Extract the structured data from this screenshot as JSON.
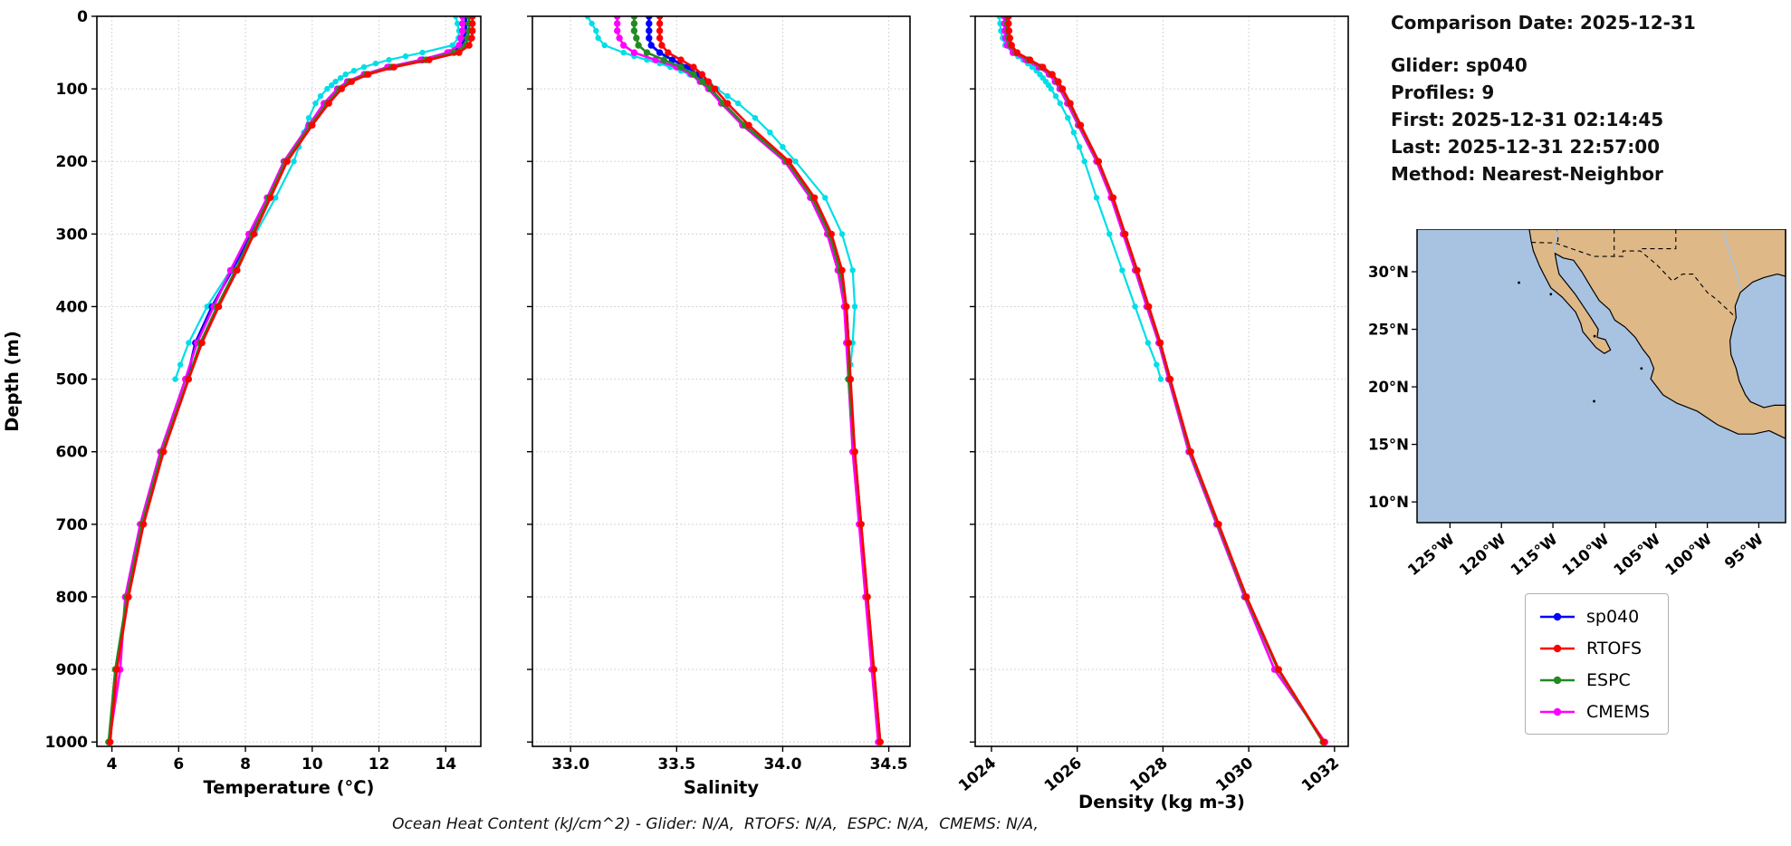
{
  "info": {
    "comparison_date": "Comparison Date: 2025-12-31",
    "glider": "Glider: sp040",
    "profiles": "Profiles: 9",
    "first": "First: 2025-12-31 02:14:45",
    "last": "Last: 2025-12-31 22:57:00",
    "method": "Method: Nearest-Neighbor"
  },
  "caption": "Ocean Heat Content (kJ/cm^2) - Glider: N/A,  RTOFS: N/A,  ESPC: N/A,  CMEMS: N/A,",
  "legend": {
    "entries": [
      {
        "label": "sp040",
        "color": "#0000ff"
      },
      {
        "label": "RTOFS",
        "color": "#ff0000"
      },
      {
        "label": "ESPC",
        "color": "#228b22"
      },
      {
        "label": "CMEMS",
        "color": "#ff00ff"
      }
    ]
  },
  "map": {
    "lat_tick_labels": [
      "30°N",
      "25°N",
      "20°N",
      "15°N",
      "10°N"
    ],
    "lat_tick_values": [
      30,
      25,
      20,
      15,
      10
    ],
    "lon_tick_labels": [
      "125°W",
      "120°W",
      "115°W",
      "110°W",
      "105°W",
      "100°W",
      "95°W"
    ],
    "lon_tick_values": [
      -125,
      -120,
      -115,
      -110,
      -105,
      -100,
      -95
    ],
    "land_color": "#deb887",
    "ocean_color": "#a8c3e2",
    "extent": {
      "lon_min": -128.2,
      "lon_max": -92.4,
      "lat_min": 8.2,
      "lat_max": 33.7
    }
  },
  "chart_data": [
    {
      "type": "line",
      "name": "temperature-profile",
      "xlabel": "Temperature (°C)",
      "ylabel": "Depth (m)",
      "xlim": [
        3.55,
        15.05
      ],
      "xticks": [
        4,
        6,
        8,
        10,
        12,
        14
      ],
      "xtick_labels": [
        "4",
        "6",
        "8",
        "10",
        "12",
        "14"
      ],
      "ylim": [
        0,
        1006
      ],
      "yticks": [
        0,
        100,
        200,
        300,
        400,
        500,
        600,
        700,
        800,
        900,
        1000
      ],
      "ytick_labels": [
        "0",
        "100",
        "200",
        "300",
        "400",
        "500",
        "600",
        "700",
        "800",
        "900",
        "1000"
      ],
      "grid": true,
      "series": [
        {
          "name": "glider-raw",
          "label": "sp040 raw",
          "color": "#00dee8",
          "depth": [
            0,
            10,
            20,
            30,
            40,
            50,
            55,
            60,
            65,
            70,
            75,
            80,
            85,
            90,
            95,
            100,
            110,
            120,
            140,
            160,
            180,
            200,
            250,
            300,
            350,
            400,
            450,
            480,
            500
          ],
          "values": [
            14.3,
            14.35,
            14.4,
            14.38,
            14.2,
            13.3,
            12.8,
            12.3,
            11.9,
            11.55,
            11.25,
            11.0,
            10.85,
            10.7,
            10.58,
            10.45,
            10.25,
            10.1,
            9.9,
            9.75,
            9.6,
            9.45,
            8.9,
            8.3,
            7.55,
            6.85,
            6.3,
            6.05,
            5.9
          ]
        },
        {
          "name": "sp040",
          "label": "sp040",
          "color": "#0000ff",
          "depth": [
            0,
            10,
            20,
            30,
            40,
            50,
            60,
            70,
            80,
            90,
            100,
            120,
            150,
            200,
            250,
            300,
            350,
            400,
            450,
            500
          ],
          "values": [
            14.6,
            14.6,
            14.6,
            14.55,
            14.5,
            14.1,
            13.3,
            12.3,
            11.6,
            11.1,
            10.8,
            10.4,
            9.9,
            9.2,
            8.7,
            8.15,
            7.6,
            7.0,
            6.5,
            6.25
          ]
        },
        {
          "name": "CMEMS",
          "label": "CMEMS",
          "color": "#ff00ff",
          "depth": [
            0,
            10,
            20,
            30,
            40,
            50,
            60,
            70,
            80,
            90,
            100,
            120,
            150,
            200,
            250,
            300,
            350,
            400,
            450,
            500,
            600,
            700,
            800,
            900,
            1000
          ],
          "values": [
            14.5,
            14.5,
            14.5,
            14.45,
            14.4,
            14.05,
            13.25,
            12.25,
            11.55,
            11.05,
            10.75,
            10.35,
            9.9,
            9.15,
            8.65,
            8.1,
            7.55,
            7.05,
            6.55,
            6.2,
            5.45,
            4.85,
            4.4,
            4.25,
            3.92
          ]
        },
        {
          "name": "ESPC",
          "label": "ESPC",
          "color": "#228b22",
          "depth": [
            0,
            10,
            20,
            30,
            40,
            50,
            60,
            70,
            80,
            90,
            100,
            120,
            150,
            200,
            250,
            300,
            350,
            400,
            450,
            500,
            600,
            700,
            800,
            900,
            1000
          ],
          "values": [
            14.7,
            14.7,
            14.7,
            14.65,
            14.6,
            14.25,
            13.4,
            12.38,
            11.62,
            11.12,
            10.82,
            10.45,
            9.95,
            9.2,
            8.7,
            8.2,
            7.7,
            7.15,
            6.65,
            6.28,
            5.5,
            4.9,
            4.45,
            4.1,
            3.9
          ]
        },
        {
          "name": "RTOFS",
          "label": "RTOFS",
          "color": "#ff0000",
          "depth": [
            0,
            10,
            20,
            30,
            40,
            50,
            60,
            70,
            80,
            90,
            100,
            120,
            150,
            200,
            250,
            300,
            350,
            400,
            450,
            500,
            600,
            700,
            800,
            900,
            1000
          ],
          "values": [
            14.8,
            14.8,
            14.8,
            14.78,
            14.7,
            14.4,
            13.5,
            12.45,
            11.68,
            11.18,
            10.88,
            10.5,
            10.0,
            9.25,
            8.75,
            8.25,
            7.75,
            7.2,
            6.7,
            6.3,
            5.55,
            4.95,
            4.5,
            4.15,
            3.95
          ]
        }
      ]
    },
    {
      "type": "line",
      "name": "salinity-profile",
      "xlabel": "Salinity",
      "ylabel": "Depth (m)",
      "xlim": [
        32.82,
        34.6
      ],
      "xticks": [
        33.0,
        33.5,
        34.0,
        34.5
      ],
      "xtick_labels": [
        "33.0",
        "33.5",
        "34.0",
        "34.5"
      ],
      "ylim": [
        0,
        1006
      ],
      "yticks": [
        0,
        100,
        200,
        300,
        400,
        500,
        600,
        700,
        800,
        900,
        1000
      ],
      "ytick_labels": [
        "0",
        "100",
        "200",
        "300",
        "400",
        "500",
        "600",
        "700",
        "800",
        "900",
        "1000"
      ],
      "grid": true,
      "series": [
        {
          "name": "glider-raw",
          "label": "sp040 raw",
          "color": "#00dee8",
          "depth": [
            0,
            10,
            20,
            30,
            40,
            50,
            55,
            60,
            65,
            70,
            75,
            80,
            85,
            90,
            95,
            100,
            110,
            120,
            140,
            160,
            180,
            200,
            250,
            300,
            350,
            400,
            450,
            480,
            500
          ],
          "values": [
            33.08,
            33.1,
            33.12,
            33.13,
            33.16,
            33.25,
            33.3,
            33.36,
            33.42,
            33.47,
            33.52,
            33.56,
            33.6,
            33.63,
            33.66,
            33.69,
            33.74,
            33.79,
            33.87,
            33.94,
            34.0,
            34.06,
            34.2,
            34.28,
            34.33,
            34.34,
            34.33,
            34.32,
            34.31
          ]
        },
        {
          "name": "sp040",
          "label": "sp040",
          "color": "#0000ff",
          "depth": [
            0,
            10,
            20,
            30,
            40,
            50,
            60,
            70,
            80,
            90,
            100,
            120,
            150,
            200,
            250,
            300,
            350,
            400,
            450,
            500
          ],
          "values": [
            33.37,
            33.37,
            33.37,
            33.37,
            33.38,
            33.42,
            33.48,
            33.55,
            33.6,
            33.63,
            33.66,
            33.72,
            33.82,
            34.02,
            34.14,
            34.22,
            34.27,
            34.3,
            34.31,
            34.31
          ]
        },
        {
          "name": "CMEMS",
          "label": "CMEMS",
          "color": "#ff00ff",
          "depth": [
            0,
            10,
            20,
            30,
            40,
            50,
            60,
            70,
            80,
            90,
            100,
            120,
            150,
            200,
            250,
            300,
            350,
            400,
            450,
            500,
            600,
            700,
            800,
            900,
            1000
          ],
          "values": [
            33.22,
            33.22,
            33.22,
            33.23,
            33.25,
            33.3,
            33.4,
            33.5,
            33.57,
            33.61,
            33.65,
            33.71,
            33.81,
            34.01,
            34.13,
            34.21,
            34.26,
            34.29,
            34.3,
            34.31,
            34.33,
            34.36,
            34.39,
            34.42,
            34.45
          ]
        },
        {
          "name": "ESPC",
          "label": "ESPC",
          "color": "#228b22",
          "depth": [
            0,
            10,
            20,
            30,
            40,
            50,
            60,
            70,
            80,
            90,
            100,
            120,
            150,
            200,
            250,
            300,
            350,
            400,
            450,
            500,
            600,
            700,
            800,
            900,
            1000
          ],
          "values": [
            33.3,
            33.3,
            33.3,
            33.31,
            33.32,
            33.36,
            33.44,
            33.52,
            33.58,
            33.62,
            33.66,
            33.72,
            33.82,
            34.02,
            34.14,
            34.22,
            34.27,
            34.3,
            34.31,
            34.31,
            34.34,
            34.37,
            34.4,
            34.43,
            34.46
          ]
        },
        {
          "name": "RTOFS",
          "label": "RTOFS",
          "color": "#ff0000",
          "depth": [
            0,
            10,
            20,
            30,
            40,
            50,
            60,
            70,
            80,
            90,
            100,
            120,
            150,
            200,
            250,
            300,
            350,
            400,
            450,
            500,
            600,
            700,
            800,
            900,
            1000
          ],
          "values": [
            33.42,
            33.42,
            33.42,
            33.42,
            33.43,
            33.46,
            33.52,
            33.58,
            33.62,
            33.65,
            33.68,
            33.74,
            33.84,
            34.03,
            34.15,
            34.23,
            34.28,
            34.3,
            34.31,
            34.32,
            34.34,
            34.37,
            34.4,
            34.43,
            34.46
          ]
        }
      ]
    },
    {
      "type": "line",
      "name": "density-profile",
      "xlabel": "Density (kg m-3)",
      "ylabel": "Depth (m)",
      "xlim": [
        1023.62,
        1032.32
      ],
      "xticks": [
        1024,
        1026,
        1028,
        1030,
        1032
      ],
      "xtick_labels": [
        "1024",
        "1026",
        "1028",
        "1030",
        "1032"
      ],
      "ylim": [
        0,
        1006
      ],
      "yticks": [
        0,
        100,
        200,
        300,
        400,
        500,
        600,
        700,
        800,
        900,
        1000
      ],
      "ytick_labels": [
        "0",
        "100",
        "200",
        "300",
        "400",
        "500",
        "600",
        "700",
        "800",
        "900",
        "1000"
      ],
      "grid": true,
      "series": [
        {
          "name": "glider-raw",
          "label": "sp040 raw",
          "color": "#00dee8",
          "depth": [
            0,
            10,
            20,
            30,
            40,
            50,
            55,
            60,
            65,
            70,
            75,
            80,
            85,
            90,
            95,
            100,
            110,
            120,
            140,
            160,
            180,
            200,
            250,
            300,
            350,
            400,
            450,
            480,
            500
          ],
          "values": [
            1024.18,
            1024.2,
            1024.22,
            1024.26,
            1024.32,
            1024.5,
            1024.62,
            1024.74,
            1024.85,
            1024.95,
            1025.05,
            1025.13,
            1025.2,
            1025.27,
            1025.33,
            1025.39,
            1025.5,
            1025.6,
            1025.78,
            1025.92,
            1026.05,
            1026.17,
            1026.45,
            1026.75,
            1027.05,
            1027.35,
            1027.65,
            1027.85,
            1027.95
          ]
        },
        {
          "name": "sp040",
          "label": "sp040",
          "color": "#0000ff",
          "depth": [
            0,
            10,
            20,
            30,
            40,
            50,
            60,
            70,
            80,
            90,
            100,
            120,
            150,
            200,
            250,
            300,
            350,
            400,
            450,
            500
          ],
          "values": [
            1024.35,
            1024.35,
            1024.36,
            1024.38,
            1024.42,
            1024.55,
            1024.85,
            1025.15,
            1025.38,
            1025.52,
            1025.62,
            1025.8,
            1026.05,
            1026.48,
            1026.82,
            1027.1,
            1027.38,
            1027.65,
            1027.92,
            1028.15
          ]
        },
        {
          "name": "CMEMS",
          "label": "CMEMS",
          "color": "#ff00ff",
          "depth": [
            0,
            10,
            20,
            30,
            40,
            50,
            60,
            70,
            80,
            90,
            100,
            120,
            150,
            200,
            250,
            300,
            350,
            400,
            450,
            500,
            600,
            700,
            800,
            900,
            1000
          ],
          "values": [
            1024.3,
            1024.3,
            1024.31,
            1024.33,
            1024.37,
            1024.5,
            1024.8,
            1025.1,
            1025.34,
            1025.48,
            1025.59,
            1025.77,
            1026.02,
            1026.45,
            1026.79,
            1027.07,
            1027.35,
            1027.62,
            1027.9,
            1028.13,
            1028.6,
            1029.25,
            1029.9,
            1030.6,
            1031.78
          ]
        },
        {
          "name": "ESPC",
          "label": "ESPC",
          "color": "#228b22",
          "depth": [
            0,
            10,
            20,
            30,
            40,
            50,
            60,
            70,
            80,
            90,
            100,
            120,
            150,
            200,
            250,
            300,
            350,
            400,
            450,
            500,
            600,
            700,
            800,
            900,
            1000
          ],
          "values": [
            1024.37,
            1024.37,
            1024.38,
            1024.4,
            1024.44,
            1024.57,
            1024.87,
            1025.17,
            1025.4,
            1025.54,
            1025.64,
            1025.82,
            1026.06,
            1026.49,
            1026.83,
            1027.11,
            1027.39,
            1027.66,
            1027.93,
            1028.16,
            1028.63,
            1029.28,
            1029.93,
            1030.68,
            1031.73
          ]
        },
        {
          "name": "RTOFS",
          "label": "RTOFS",
          "color": "#ff0000",
          "depth": [
            0,
            10,
            20,
            30,
            40,
            50,
            60,
            70,
            80,
            90,
            100,
            120,
            150,
            200,
            250,
            300,
            350,
            400,
            450,
            500,
            600,
            700,
            800,
            900,
            1000
          ],
          "values": [
            1024.4,
            1024.4,
            1024.41,
            1024.43,
            1024.47,
            1024.6,
            1024.9,
            1025.2,
            1025.42,
            1025.56,
            1025.66,
            1025.84,
            1026.08,
            1026.5,
            1026.84,
            1027.12,
            1027.4,
            1027.67,
            1027.94,
            1028.17,
            1028.65,
            1029.3,
            1029.95,
            1030.7,
            1031.75
          ]
        }
      ]
    }
  ]
}
